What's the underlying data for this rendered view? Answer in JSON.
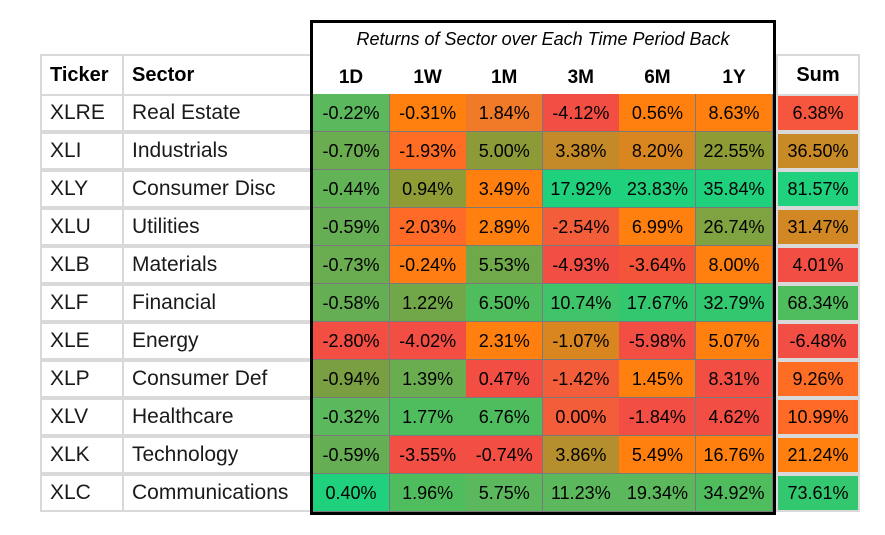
{
  "table": {
    "title": "Returns of Sector over Each Time Period Back",
    "headers": {
      "ticker": "Ticker",
      "sector": "Sector",
      "sum": "Sum"
    },
    "periods": [
      "1D",
      "1W",
      "1M",
      "3M",
      "6M",
      "1Y"
    ],
    "rows": [
      {
        "ticker": "XLRE",
        "sector": "Real Estate",
        "values": [
          "-0.22%",
          "-0.31%",
          "1.84%",
          "-4.12%",
          "0.56%",
          "8.63%"
        ],
        "sum": "6.38%",
        "colors": [
          "#5cb85c",
          "#ff7f0f",
          "#f07a28",
          "#f24e43",
          "#ff7f0f",
          "#ff7f0f"
        ],
        "sum_color": "#f6553e"
      },
      {
        "ticker": "XLI",
        "sector": "Industrials",
        "values": [
          "-0.70%",
          "-1.93%",
          "5.00%",
          "3.38%",
          "8.20%",
          "22.55%"
        ],
        "sum": "36.50%",
        "colors": [
          "#6aac50",
          "#ff6d24",
          "#8c9a38",
          "#c48a28",
          "#d98520",
          "#8f9b35"
        ],
        "sum_color": "#c88a26"
      },
      {
        "ticker": "XLY",
        "sector": "Consumer Disc",
        "values": [
          "-0.44%",
          "0.94%",
          "3.49%",
          "17.92%",
          "23.83%",
          "35.84%"
        ],
        "sum": "81.57%",
        "colors": [
          "#62b256",
          "#8f9b35",
          "#ff7f0f",
          "#1fd07c",
          "#1fd07c",
          "#1fd07c"
        ],
        "sum_color": "#1fd07c"
      },
      {
        "ticker": "XLU",
        "sector": "Utilities",
        "values": [
          "-0.59%",
          "-2.03%",
          "2.89%",
          "-2.54%",
          "6.99%",
          "26.74%"
        ],
        "sum": "31.47%",
        "colors": [
          "#66ae53",
          "#ff6b26",
          "#ff7f0f",
          "#f45d3a",
          "#ff7f0f",
          "#7fa340"
        ],
        "sum_color": "#d08724"
      },
      {
        "ticker": "XLB",
        "sector": "Materials",
        "values": [
          "-0.73%",
          "-0.24%",
          "5.53%",
          "-4.93%",
          "-3.64%",
          "8.00%"
        ],
        "sum": "4.01%",
        "colors": [
          "#6aac50",
          "#ff7d12",
          "#6fa94a",
          "#f24e43",
          "#f45438",
          "#ff7f0f"
        ],
        "sum_color": "#f24e43"
      },
      {
        "ticker": "XLF",
        "sector": "Financial",
        "values": [
          "-0.58%",
          "1.22%",
          "6.50%",
          "10.74%",
          "17.67%",
          "32.79%"
        ],
        "sum": "68.34%",
        "colors": [
          "#66ae53",
          "#72a749",
          "#4fbd5d",
          "#3fc46a",
          "#33c86f",
          "#33c86f"
        ],
        "sum_color": "#4fbd5d"
      },
      {
        "ticker": "XLE",
        "sector": "Energy",
        "values": [
          "-2.80%",
          "-4.02%",
          "2.31%",
          "-1.07%",
          "-5.98%",
          "5.07%"
        ],
        "sum": "-6.48%",
        "colors": [
          "#f24e43",
          "#f24e43",
          "#ff7f0f",
          "#d98520",
          "#f24e43",
          "#ff7f0f"
        ],
        "sum_color": "#f24e43"
      },
      {
        "ticker": "XLP",
        "sector": "Consumer Def",
        "values": [
          "-0.94%",
          "1.39%",
          "0.47%",
          "-1.42%",
          "1.45%",
          "8.31%"
        ],
        "sum": "9.26%",
        "colors": [
          "#799f42",
          "#6aac50",
          "#f24e43",
          "#f45d3a",
          "#ff7f0f",
          "#f24e43"
        ],
        "sum_color": "#ff6d24"
      },
      {
        "ticker": "XLV",
        "sector": "Healthcare",
        "values": [
          "-0.32%",
          "1.77%",
          "6.76%",
          "0.00%",
          "-1.84%",
          "4.62%"
        ],
        "sum": "10.99%",
        "colors": [
          "#5cb85c",
          "#4fbd5d",
          "#4fbd5d",
          "#f45d3a",
          "#f24e43",
          "#f24e43"
        ],
        "sum_color": "#ff6a26"
      },
      {
        "ticker": "XLK",
        "sector": "Technology",
        "values": [
          "-0.59%",
          "-3.55%",
          "-0.74%",
          "3.86%",
          "5.49%",
          "16.76%"
        ],
        "sum": "21.24%",
        "colors": [
          "#66ae53",
          "#f24e43",
          "#f24e43",
          "#b58f2d",
          "#ff7f0f",
          "#ff7f0f"
        ],
        "sum_color": "#ff7f0f"
      },
      {
        "ticker": "XLC",
        "sector": "Communications",
        "values": [
          "0.40%",
          "1.96%",
          "5.75%",
          "11.23%",
          "19.34%",
          "34.92%"
        ],
        "sum": "73.61%",
        "colors": [
          "#1fd07c",
          "#4fbd5d",
          "#5cb85c",
          "#5cb85c",
          "#5cb85c",
          "#4fbd5d"
        ],
        "sum_color": "#33c86f"
      }
    ]
  }
}
